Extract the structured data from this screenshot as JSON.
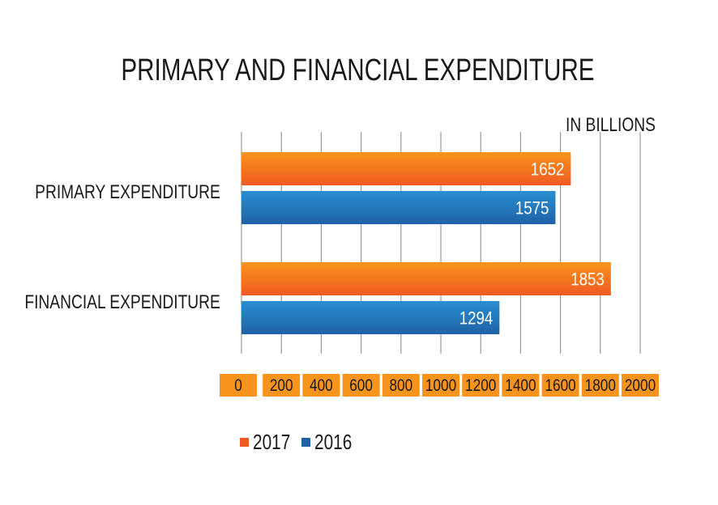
{
  "colors": {
    "series_2017_top": "#f7941d",
    "series_2017_bottom": "#f05a22",
    "series_2016_top": "#2a8fd0",
    "series_2016_bottom": "#1f62a8",
    "tick_box": "#f7941d",
    "gridline": "#9a9a9a"
  },
  "chart_data": {
    "type": "bar",
    "orientation": "horizontal",
    "title": "PRIMARY AND FINANCIAL EXPENDITURE",
    "unit_label": "IN BILLIONS",
    "categories": [
      "PRIMARY EXPENDITURE",
      "FINANCIAL EXPENDITURE"
    ],
    "series": [
      {
        "name": "2017",
        "values": [
          1652,
          1853
        ]
      },
      {
        "name": "2016",
        "values": [
          1575,
          1294
        ]
      }
    ],
    "xlim": [
      0,
      2000
    ],
    "x_ticks": [
      "0",
      "200",
      "400",
      "600",
      "800",
      "1000",
      "1200",
      "1400",
      "1600",
      "1800",
      "2000"
    ],
    "grid": true,
    "legend_position": "bottom-left",
    "data_labels": true
  }
}
